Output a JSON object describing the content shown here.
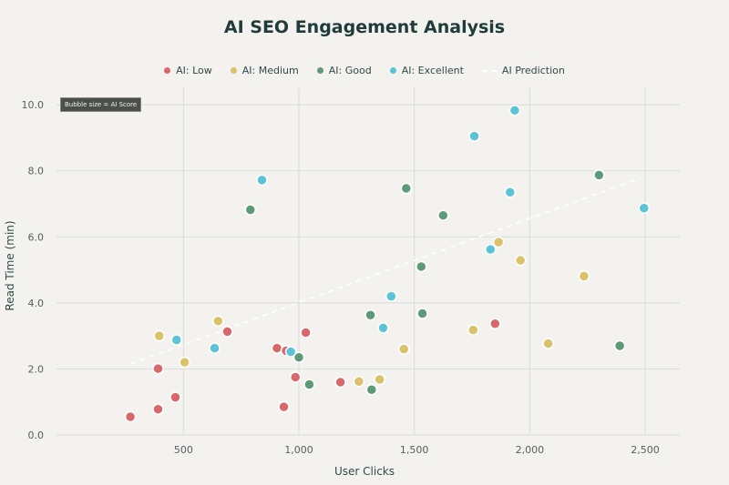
{
  "chart_data": {
    "type": "scatter",
    "title": "AI SEO Engagement Analysis",
    "xlabel": "User Clicks",
    "ylabel": "Read Time (min)",
    "xlim": [
      -50,
      2650
    ],
    "ylim": [
      0,
      10.5
    ],
    "x_ticks": [
      500,
      1000,
      1500,
      2000,
      2500
    ],
    "x_tick_labels": [
      "500",
      "1,000",
      "1,500",
      "2,000",
      "2,500"
    ],
    "y_ticks": [
      0,
      2,
      4,
      6,
      8,
      10
    ],
    "y_tick_labels": [
      "0.0",
      "2.0",
      "4.0",
      "6.0",
      "8.0",
      "10.0"
    ],
    "grid": true,
    "legend_position": "top-center",
    "annotation": "Bubble size = AI Score",
    "series": [
      {
        "name": "AI: Low",
        "color": "#d9686b",
        "points": [
          [
            270,
            0.55
          ],
          [
            390,
            0.78
          ],
          [
            390,
            2.01
          ],
          [
            465,
            1.14
          ],
          [
            690,
            3.13
          ],
          [
            905,
            2.63
          ],
          [
            935,
            0.85
          ],
          [
            945,
            2.55
          ],
          [
            985,
            1.75
          ],
          [
            1030,
            3.1
          ],
          [
            1180,
            1.6
          ],
          [
            1850,
            3.37
          ]
        ]
      },
      {
        "name": "AI: Medium",
        "color": "#d9c26a",
        "points": [
          [
            395,
            3.0
          ],
          [
            505,
            2.2
          ],
          [
            650,
            3.45
          ],
          [
            1260,
            1.62
          ],
          [
            1350,
            1.68
          ],
          [
            1455,
            2.6
          ],
          [
            1755,
            3.18
          ],
          [
            1865,
            5.84
          ],
          [
            1960,
            5.29
          ],
          [
            2080,
            2.77
          ],
          [
            2235,
            4.81
          ]
        ]
      },
      {
        "name": "AI: Good",
        "color": "#5e9a78",
        "points": [
          [
            790,
            6.82
          ],
          [
            1000,
            2.35
          ],
          [
            1045,
            1.53
          ],
          [
            1310,
            3.63
          ],
          [
            1315,
            1.37
          ],
          [
            1465,
            7.47
          ],
          [
            1530,
            5.1
          ],
          [
            1535,
            3.68
          ],
          [
            1625,
            6.65
          ],
          [
            2300,
            7.87
          ],
          [
            2390,
            2.7
          ]
        ]
      },
      {
        "name": "AI: Excellent",
        "color": "#5ac3d5",
        "points": [
          [
            470,
            2.88
          ],
          [
            635,
            2.63
          ],
          [
            840,
            7.72
          ],
          [
            965,
            2.52
          ],
          [
            1365,
            3.24
          ],
          [
            1400,
            4.2
          ],
          [
            1760,
            9.05
          ],
          [
            1830,
            5.62
          ],
          [
            1915,
            7.35
          ],
          [
            1935,
            9.83
          ],
          [
            2495,
            6.87
          ]
        ]
      },
      {
        "name": "AI Prediction",
        "color": "#ffffff",
        "style": "dashed-line",
        "points": [
          [
            270,
            2.15
          ],
          [
            2480,
            7.78
          ]
        ]
      }
    ]
  }
}
